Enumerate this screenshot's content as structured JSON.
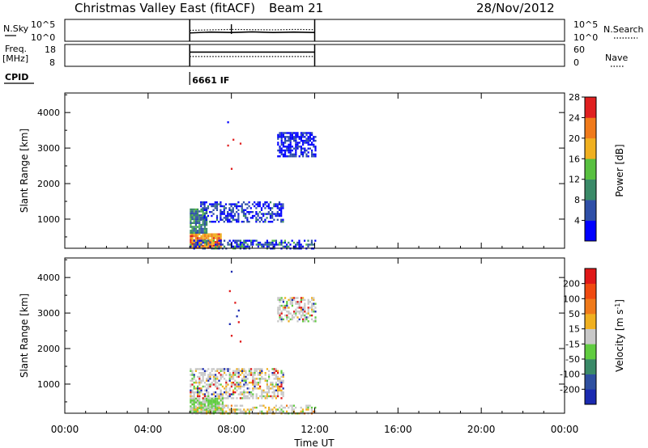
{
  "header": {
    "title": "Christmas Valley East (fitACF)",
    "beam": "Beam 21",
    "date": "28/Nov/2012"
  },
  "chart_data": [
    {
      "type": "line",
      "name": "nsky-panel",
      "left_label": "N.Sky",
      "right_label": "N.Search",
      "left_ticks": [
        "10^5",
        "10^0"
      ],
      "right_ticks": [
        "10^5",
        "10^0"
      ],
      "x_range_hours": [
        0,
        24
      ],
      "active_range_hours": [
        6,
        12
      ],
      "series": [
        {
          "name": "N.Sky",
          "style": "solid",
          "x": [
            6,
            7,
            8,
            9,
            10,
            11,
            12
          ],
          "y_frac": [
            0.62,
            0.58,
            0.6,
            0.57,
            0.6,
            0.58,
            0.6
          ]
        },
        {
          "name": "N.Search",
          "style": "dotted",
          "x": [
            6,
            7,
            8,
            9,
            10,
            11,
            12
          ],
          "y_frac": [
            0.5,
            0.48,
            0.46,
            0.47,
            0.48,
            0.46,
            0.47
          ]
        }
      ]
    },
    {
      "type": "line",
      "name": "freq-panel",
      "left_label": "Freq.",
      "left_unit": "[MHz]",
      "right_label": "Nave",
      "left_ticks": [
        "18",
        "8"
      ],
      "right_ticks": [
        "60",
        "0"
      ],
      "x_range_hours": [
        0,
        24
      ],
      "active_range_hours": [
        6,
        12
      ],
      "series": [
        {
          "name": "Freq.",
          "style": "solid",
          "x": [
            6,
            12
          ],
          "y_frac": [
            0.35,
            0.35
          ]
        },
        {
          "name": "Nave",
          "style": "dotted",
          "x": [
            6,
            12
          ],
          "y_frac": [
            0.55,
            0.55
          ]
        }
      ]
    },
    {
      "type": "line",
      "name": "cpid-panel",
      "label": "CPID",
      "entries": [
        {
          "start_hour": 6,
          "text": "6661 IF"
        }
      ]
    },
    {
      "type": "heatmap",
      "name": "power-panel",
      "ylabel": "Slant Range [km]",
      "xlim_hours": [
        0,
        24
      ],
      "ylim_km": [
        180,
        4550
      ],
      "y_ticks": [
        1000,
        2000,
        3000,
        4000
      ],
      "colorbar_label": "Power [dB]",
      "colorbar_ticks": [
        "4",
        "8",
        "12",
        "16",
        "20",
        "24",
        "28"
      ],
      "colors": [
        "#0000ff",
        "#2f4fa8",
        "#3a8a68",
        "#58c040",
        "#f0b020",
        "#f07a1a",
        "#e02020"
      ],
      "regions": [
        {
          "x0": 6.0,
          "x1": 7.5,
          "y0": 200,
          "y1": 600,
          "dens": 0.95,
          "levels": [
            4,
            5,
            6
          ],
          "weights": [
            0.5,
            0.3,
            0.2
          ]
        },
        {
          "x0": 6.0,
          "x1": 6.8,
          "y0": 600,
          "y1": 1300,
          "dens": 0.85,
          "levels": [
            1,
            2,
            3
          ],
          "weights": [
            0.4,
            0.4,
            0.2
          ]
        },
        {
          "x0": 6.5,
          "x1": 10.5,
          "y0": 900,
          "y1": 1500,
          "dens": 0.5,
          "levels": [
            0,
            1,
            2
          ],
          "weights": [
            0.5,
            0.4,
            0.1
          ]
        },
        {
          "x0": 6.0,
          "x1": 12.0,
          "y0": 180,
          "y1": 420,
          "dens": 0.55,
          "levels": [
            0,
            1,
            2,
            3
          ],
          "weights": [
            0.4,
            0.3,
            0.2,
            0.1
          ]
        },
        {
          "x0": 10.2,
          "x1": 12.0,
          "y0": 2750,
          "y1": 3450,
          "dens": 0.65,
          "levels": [
            0,
            1
          ],
          "weights": [
            0.7,
            0.3
          ]
        },
        {
          "x0": 7.8,
          "x1": 8.4,
          "y0": 2200,
          "y1": 4300,
          "dens": 0.03,
          "levels": [
            0,
            6
          ],
          "weights": [
            0.5,
            0.5
          ]
        }
      ]
    },
    {
      "type": "heatmap",
      "name": "velocity-panel",
      "ylabel": "Slant Range [km]",
      "xlim_hours": [
        0,
        24
      ],
      "ylim_km": [
        180,
        4550
      ],
      "y_ticks": [
        1000,
        2000,
        3000,
        4000
      ],
      "colorbar_label": "Velocity [m s^-1]",
      "colorbar_ticks": [
        "200",
        "100",
        "50",
        "15",
        "-15",
        "-50",
        "-100",
        "-200"
      ],
      "colors": [
        "#1a2ab0",
        "#2f50a0",
        "#3a8a68",
        "#60cc40",
        "#c8c8c8",
        "#f0b020",
        "#f07a1a",
        "#f04a10",
        "#e01818"
      ],
      "regions": [
        {
          "x0": 6.0,
          "x1": 7.6,
          "y0": 200,
          "y1": 620,
          "dens": 0.9,
          "levels": [
            3,
            4
          ],
          "weights": [
            0.8,
            0.2
          ]
        },
        {
          "x0": 6.0,
          "x1": 10.5,
          "y0": 620,
          "y1": 1450,
          "dens": 0.55,
          "levels": [
            4,
            5,
            3,
            8,
            0
          ],
          "weights": [
            0.6,
            0.15,
            0.1,
            0.08,
            0.07
          ]
        },
        {
          "x0": 6.0,
          "x1": 12.0,
          "y0": 180,
          "y1": 420,
          "dens": 0.5,
          "levels": [
            4,
            5,
            3,
            6
          ],
          "weights": [
            0.5,
            0.3,
            0.15,
            0.05
          ]
        },
        {
          "x0": 10.2,
          "x1": 12.0,
          "y0": 2750,
          "y1": 3450,
          "dens": 0.55,
          "levels": [
            4,
            3,
            5,
            0,
            8
          ],
          "weights": [
            0.6,
            0.15,
            0.1,
            0.08,
            0.07
          ]
        },
        {
          "x0": 7.8,
          "x1": 8.4,
          "y0": 2200,
          "y1": 4300,
          "dens": 0.03,
          "levels": [
            0,
            8
          ],
          "weights": [
            0.5,
            0.5
          ]
        }
      ]
    }
  ],
  "x_axis": {
    "label": "Time UT",
    "tick_labels": [
      "00:00",
      "04:00",
      "08:00",
      "12:00",
      "16:00",
      "20:00",
      "00:00"
    ],
    "tick_hours": [
      0,
      4,
      8,
      12,
      16,
      20,
      24
    ]
  }
}
